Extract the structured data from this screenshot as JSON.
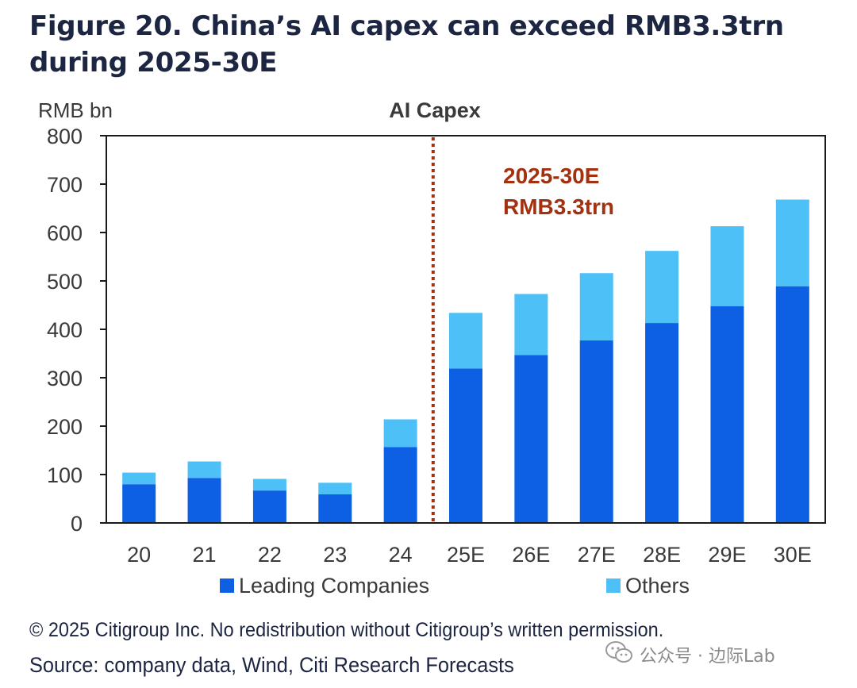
{
  "figure": {
    "title": "Figure 20. China’s AI capex can exceed RMB3.3trn during 2025-30E"
  },
  "chart_data": {
    "type": "bar",
    "stacked": true,
    "title": "AI Capex",
    "ylabel": "RMB bn",
    "xlabel": "",
    "ylim": [
      0,
      800
    ],
    "yticks": [
      0,
      100,
      200,
      300,
      400,
      500,
      600,
      700,
      800
    ],
    "categories": [
      "20",
      "21",
      "22",
      "23",
      "24",
      "25E",
      "26E",
      "27E",
      "28E",
      "29E",
      "30E"
    ],
    "series": [
      {
        "name": "Leading Companies",
        "color": "#0d5fe3",
        "values": [
          80,
          93,
          67,
          59,
          157,
          319,
          347,
          377,
          413,
          448,
          489
        ]
      },
      {
        "name": "Others",
        "color": "#4dc0f8",
        "values": [
          24,
          34,
          24,
          24,
          57,
          115,
          126,
          139,
          149,
          165,
          179
        ]
      }
    ],
    "annotation": {
      "line1": "2025-30E",
      "line2": "RMB3.3trn",
      "color": "#a3310f",
      "divider_after_category": "24"
    },
    "legend_position": "bottom",
    "grid": false
  },
  "footer": {
    "copyright": "© 2025 Citigroup Inc. No redistribution without Citigroup’s written permission.",
    "source": "Source: company data, Wind, Citi Research Forecasts"
  },
  "watermark": {
    "icon": "wechat-icon",
    "text": "公众号 · 边际Lab"
  }
}
